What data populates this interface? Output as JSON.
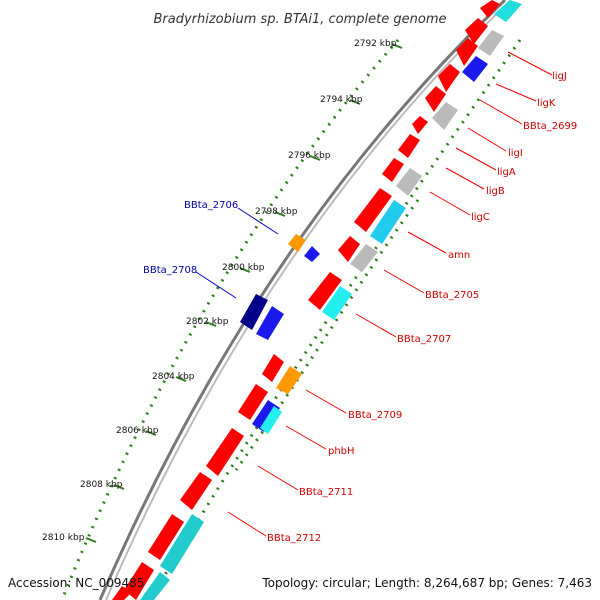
{
  "title": "Bradyrhizobium sp. BTAi1, complete genome",
  "footer": {
    "accession": "Accession: NC_009485",
    "topology": "Topology: circular; Length: 8,264,687 bp; Genes: 7,463"
  },
  "ticks": [
    "2792 kbp",
    "2794 kbp",
    "2796 kbp",
    "2798 kbp",
    "2800 kbp",
    "2802 kbp",
    "2804 kbp",
    "2806 kbp",
    "2808 kbp",
    "2810 kbp"
  ],
  "colors": {
    "forward_gene": "#ff0000",
    "reverse_label": "#0000aa",
    "forward_label": "#d00000",
    "backbone": "#777777",
    "tick": "#2e7d1e",
    "cyan": "#22dddd",
    "gray": "#bbbbbb",
    "orange": "#ff9900",
    "blue": "#1a1aee",
    "navy": "#000088"
  },
  "forward_labels": [
    "ligJ",
    "ligK",
    "BBta_2699",
    "ligI",
    "ligA",
    "ligB",
    "ligC",
    "amn",
    "BBta_2705",
    "BBta_2707",
    "BBta_2709",
    "phbH",
    "BBta_2711",
    "BBta_2712"
  ],
  "reverse_labels": [
    "BBta_2706",
    "BBta_2708"
  ]
}
